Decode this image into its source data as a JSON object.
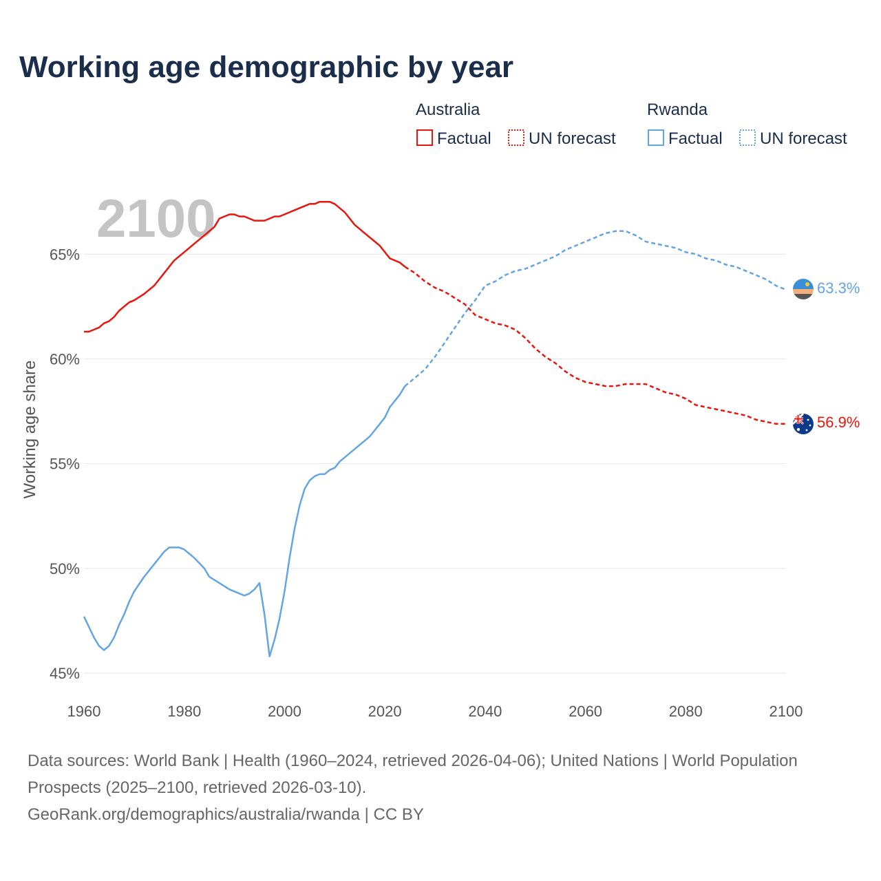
{
  "title": "Working age demographic by year",
  "year_label": "2100",
  "legend": {
    "groups": [
      {
        "country": "Australia",
        "factual_label": "Factual",
        "forecast_label": "UN forecast",
        "color": "#e8150d"
      },
      {
        "country": "Rwanda",
        "factual_label": "Factual",
        "forecast_label": "UN forecast",
        "color": "#63a4e3"
      }
    ]
  },
  "y_axis_label": "Working age share",
  "source_line1": "Data sources: World Bank | Health (1960–2024, retrieved 2026-04-06); United Nations | World Population Prospects (2025–2100, retrieved 2026-03-10).",
  "source_line2": "GeoRank.org/demographics/australia/rwanda | CC BY",
  "icons": {
    "australia": "australia-flag-icon",
    "rwanda": "rwanda-flag-icon"
  },
  "chart_data": {
    "type": "line",
    "title": "Working age demographic by year",
    "xlabel": "",
    "ylabel": "Working age share",
    "xlim": [
      1960,
      2100
    ],
    "ylim": [
      45,
      68
    ],
    "x_ticks": [
      1960,
      1980,
      2000,
      2020,
      2040,
      2060,
      2080,
      2100
    ],
    "y_ticks": [
      45,
      50,
      55,
      60,
      65
    ],
    "y_tick_labels": [
      "45%",
      "50%",
      "55%",
      "60%",
      "65%"
    ],
    "factual_end_year": 2024,
    "grid": true,
    "series": [
      {
        "name": "Australia",
        "color": "#e8150d",
        "end_label": "56.9%",
        "points": [
          [
            1960,
            61.3
          ],
          [
            1961,
            61.3
          ],
          [
            1962,
            61.4
          ],
          [
            1963,
            61.5
          ],
          [
            1964,
            61.7
          ],
          [
            1965,
            61.8
          ],
          [
            1966,
            62.0
          ],
          [
            1967,
            62.3
          ],
          [
            1968,
            62.5
          ],
          [
            1969,
            62.7
          ],
          [
            1970,
            62.8
          ],
          [
            1972,
            63.1
          ],
          [
            1974,
            63.5
          ],
          [
            1976,
            64.1
          ],
          [
            1978,
            64.7
          ],
          [
            1980,
            65.1
          ],
          [
            1982,
            65.5
          ],
          [
            1984,
            65.9
          ],
          [
            1986,
            66.3
          ],
          [
            1987,
            66.7
          ],
          [
            1989,
            66.9
          ],
          [
            1990,
            66.9
          ],
          [
            1991,
            66.8
          ],
          [
            1992,
            66.8
          ],
          [
            1994,
            66.6
          ],
          [
            1996,
            66.6
          ],
          [
            1998,
            66.8
          ],
          [
            1999,
            66.8
          ],
          [
            2001,
            67.0
          ],
          [
            2003,
            67.2
          ],
          [
            2005,
            67.4
          ],
          [
            2006,
            67.4
          ],
          [
            2007,
            67.5
          ],
          [
            2009,
            67.5
          ],
          [
            2010,
            67.4
          ],
          [
            2012,
            67.0
          ],
          [
            2014,
            66.4
          ],
          [
            2016,
            66.0
          ],
          [
            2018,
            65.6
          ],
          [
            2019,
            65.4
          ],
          [
            2021,
            64.8
          ],
          [
            2023,
            64.6
          ],
          [
            2024,
            64.4
          ],
          [
            2026,
            64.1
          ],
          [
            2028,
            63.7
          ],
          [
            2030,
            63.4
          ],
          [
            2032,
            63.2
          ],
          [
            2034,
            62.9
          ],
          [
            2036,
            62.6
          ],
          [
            2038,
            62.1
          ],
          [
            2040,
            61.9
          ],
          [
            2042,
            61.7
          ],
          [
            2044,
            61.6
          ],
          [
            2046,
            61.4
          ],
          [
            2048,
            61.0
          ],
          [
            2050,
            60.5
          ],
          [
            2052,
            60.1
          ],
          [
            2054,
            59.8
          ],
          [
            2056,
            59.4
          ],
          [
            2058,
            59.1
          ],
          [
            2060,
            58.9
          ],
          [
            2062,
            58.8
          ],
          [
            2064,
            58.7
          ],
          [
            2066,
            58.7
          ],
          [
            2068,
            58.8
          ],
          [
            2070,
            58.8
          ],
          [
            2072,
            58.8
          ],
          [
            2074,
            58.6
          ],
          [
            2076,
            58.4
          ],
          [
            2078,
            58.3
          ],
          [
            2080,
            58.1
          ],
          [
            2082,
            57.8
          ],
          [
            2084,
            57.7
          ],
          [
            2086,
            57.6
          ],
          [
            2088,
            57.5
          ],
          [
            2090,
            57.4
          ],
          [
            2092,
            57.3
          ],
          [
            2094,
            57.1
          ],
          [
            2096,
            57.0
          ],
          [
            2098,
            56.9
          ],
          [
            2100,
            56.9
          ]
        ]
      },
      {
        "name": "Rwanda",
        "color": "#63a4e3",
        "end_label": "63.3%",
        "points": [
          [
            1960,
            47.7
          ],
          [
            1961,
            47.2
          ],
          [
            1962,
            46.7
          ],
          [
            1963,
            46.3
          ],
          [
            1964,
            46.1
          ],
          [
            1965,
            46.3
          ],
          [
            1966,
            46.7
          ],
          [
            1967,
            47.3
          ],
          [
            1968,
            47.8
          ],
          [
            1969,
            48.4
          ],
          [
            1970,
            48.9
          ],
          [
            1972,
            49.6
          ],
          [
            1974,
            50.2
          ],
          [
            1976,
            50.8
          ],
          [
            1977,
            51.0
          ],
          [
            1978,
            51.0
          ],
          [
            1979,
            51.0
          ],
          [
            1980,
            50.9
          ],
          [
            1982,
            50.5
          ],
          [
            1984,
            50.0
          ],
          [
            1985,
            49.6
          ],
          [
            1987,
            49.3
          ],
          [
            1989,
            49.0
          ],
          [
            1991,
            48.8
          ],
          [
            1992,
            48.7
          ],
          [
            1993,
            48.8
          ],
          [
            1994,
            49.0
          ],
          [
            1995,
            49.3
          ],
          [
            1996,
            47.8
          ],
          [
            1997,
            45.8
          ],
          [
            1998,
            46.6
          ],
          [
            1999,
            47.6
          ],
          [
            2000,
            48.9
          ],
          [
            2001,
            50.5
          ],
          [
            2002,
            51.9
          ],
          [
            2003,
            53.0
          ],
          [
            2004,
            53.8
          ],
          [
            2005,
            54.2
          ],
          [
            2006,
            54.4
          ],
          [
            2007,
            54.5
          ],
          [
            2008,
            54.5
          ],
          [
            2009,
            54.7
          ],
          [
            2010,
            54.8
          ],
          [
            2011,
            55.1
          ],
          [
            2013,
            55.5
          ],
          [
            2015,
            55.9
          ],
          [
            2017,
            56.3
          ],
          [
            2018,
            56.6
          ],
          [
            2020,
            57.2
          ],
          [
            2021,
            57.7
          ],
          [
            2022,
            58.0
          ],
          [
            2023,
            58.3
          ],
          [
            2024,
            58.7
          ],
          [
            2026,
            59.1
          ],
          [
            2028,
            59.5
          ],
          [
            2030,
            60.1
          ],
          [
            2032,
            60.8
          ],
          [
            2034,
            61.5
          ],
          [
            2036,
            62.2
          ],
          [
            2038,
            62.8
          ],
          [
            2040,
            63.5
          ],
          [
            2042,
            63.7
          ],
          [
            2044,
            64.0
          ],
          [
            2046,
            64.2
          ],
          [
            2048,
            64.3
          ],
          [
            2050,
            64.5
          ],
          [
            2052,
            64.7
          ],
          [
            2054,
            64.9
          ],
          [
            2056,
            65.2
          ],
          [
            2058,
            65.4
          ],
          [
            2060,
            65.6
          ],
          [
            2062,
            65.8
          ],
          [
            2064,
            66.0
          ],
          [
            2066,
            66.1
          ],
          [
            2068,
            66.1
          ],
          [
            2070,
            65.9
          ],
          [
            2072,
            65.6
          ],
          [
            2074,
            65.5
          ],
          [
            2076,
            65.4
          ],
          [
            2078,
            65.3
          ],
          [
            2080,
            65.1
          ],
          [
            2082,
            65.0
          ],
          [
            2084,
            64.8
          ],
          [
            2086,
            64.7
          ],
          [
            2088,
            64.5
          ],
          [
            2090,
            64.4
          ],
          [
            2092,
            64.2
          ],
          [
            2094,
            64.0
          ],
          [
            2096,
            63.8
          ],
          [
            2098,
            63.5
          ],
          [
            2100,
            63.3
          ]
        ]
      }
    ]
  }
}
